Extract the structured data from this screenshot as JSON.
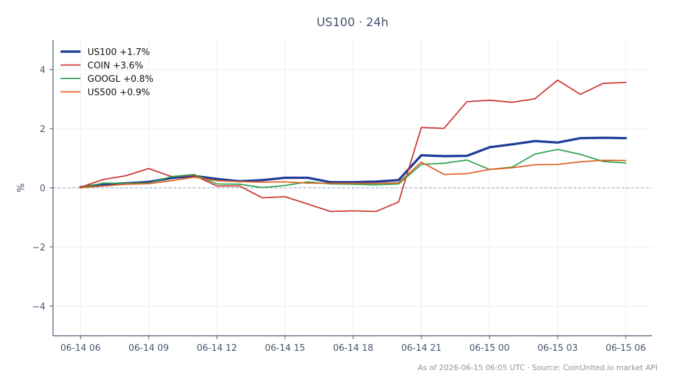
{
  "chart_data": {
    "type": "line",
    "title": "US100 · 24h",
    "xlabel": "",
    "ylabel": "%",
    "ylim": [
      -5,
      5
    ],
    "yticks": [
      -4,
      -2,
      0,
      2,
      4
    ],
    "ytick_labels": [
      "−4",
      "−2",
      "0",
      "2",
      "4"
    ],
    "xtick_labels": [
      "06-14 06",
      "06-14 09",
      "06-14 12",
      "06-14 15",
      "06-14 18",
      "06-14 21",
      "06-15 00",
      "06-15 03",
      "06-15 06"
    ],
    "x_hours_labels_note": "",
    "x": [
      "06-14 06",
      "06-14 07",
      "06-14 08",
      "06-14 09",
      "06-14 10",
      "06-14 11",
      "06-14 12",
      "06-14 13",
      "06-14 14",
      "06-14 15",
      "06-14 16",
      "06-14 17",
      "06-14 18",
      "06-14 19",
      "06-14 20",
      "06-14 21",
      "06-14 22",
      "06-14 23",
      "06-15 00",
      "06-15 01",
      "06-15 02",
      "06-15 03",
      "06-15 04",
      "06-15 05",
      "06-15 06"
    ],
    "grid": true,
    "baseline": 0,
    "legend_position": "top-left",
    "series": [
      {
        "name": "US100 +1.7%",
        "color": "#1f3d99",
        "emphasis": true,
        "values": [
          0.02,
          0.12,
          0.15,
          0.2,
          0.33,
          0.4,
          0.3,
          0.22,
          0.26,
          0.34,
          0.34,
          0.19,
          0.19,
          0.21,
          0.26,
          1.1,
          1.07,
          1.08,
          1.37,
          1.47,
          1.58,
          1.53,
          1.68,
          1.69,
          1.68
        ]
      },
      {
        "name": "COIN +3.6%",
        "color": "#cc3333",
        "values": [
          0.02,
          0.28,
          0.41,
          0.65,
          0.38,
          0.42,
          0.06,
          0.06,
          -0.34,
          -0.3,
          -0.55,
          -0.8,
          -0.78,
          -0.8,
          -0.48,
          2.04,
          2.01,
          2.91,
          2.96,
          2.89,
          3.01,
          3.64,
          3.16,
          3.53,
          3.56
        ]
      },
      {
        "name": "GOOGL +0.8%",
        "color": "#2ca04c",
        "values": [
          0.0,
          0.16,
          0.15,
          0.16,
          0.38,
          0.45,
          0.13,
          0.12,
          0.01,
          0.08,
          0.2,
          0.13,
          0.12,
          0.1,
          0.13,
          0.79,
          0.83,
          0.94,
          0.62,
          0.7,
          1.14,
          1.3,
          1.13,
          0.89,
          0.84
        ]
      },
      {
        "name": "US500 +0.9%",
        "color": "#e06020",
        "values": [
          0.0,
          0.06,
          0.12,
          0.14,
          0.24,
          0.36,
          0.24,
          0.21,
          0.19,
          0.2,
          0.16,
          0.15,
          0.15,
          0.15,
          0.17,
          0.87,
          0.45,
          0.48,
          0.62,
          0.68,
          0.78,
          0.79,
          0.88,
          0.93,
          0.92
        ]
      }
    ],
    "footer": "As of 2026-06-15 06:05 UTC · Source: CoinUnited.io market API"
  },
  "colors": {
    "axis": "#44546a",
    "grid": "#ececec",
    "baseline": "#7f9cc6"
  }
}
